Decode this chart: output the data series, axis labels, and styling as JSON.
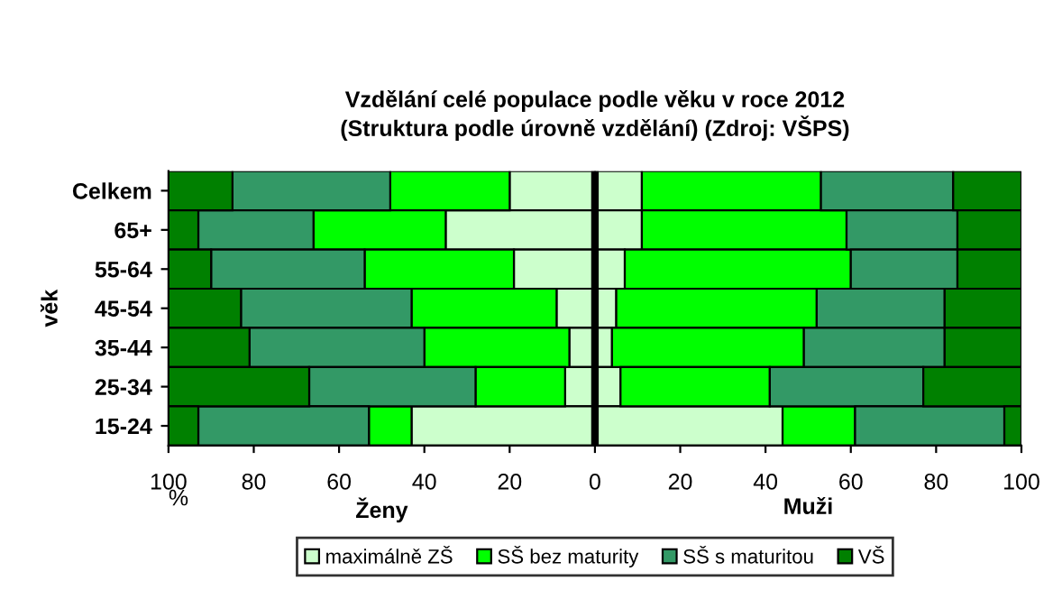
{
  "chart_data": {
    "type": "bar",
    "orientation": "horizontal",
    "stacked": true,
    "title": "Vzdělání celé populace podle věku v roce 2012\n(Struktura podle úrovně vzdělání) (Zdroj: VŠPS)",
    "ylabel": "věk",
    "xlabel": "%",
    "annotations": [
      "Ženy",
      "Muži"
    ],
    "categories": [
      "Celkem",
      "65+",
      "55-64",
      "45-54",
      "35-44",
      "25-34",
      "15-24"
    ],
    "series": [
      {
        "name": "maximálně ZŠ",
        "color": "#ccffcc",
        "values": [
          11,
          11,
          7,
          5,
          4,
          6,
          44
        ]
      },
      {
        "name": "SŠ bez maturity",
        "color": "#00ff00",
        "values": [
          42,
          48,
          53,
          47,
          45,
          35,
          17
        ]
      },
      {
        "name": "SŠ s maturitou",
        "color": "#339966",
        "values": [
          31,
          26,
          25,
          30,
          33,
          36,
          35
        ]
      },
      {
        "name": "VŠ",
        "color": "#008000",
        "values": [
          16,
          15,
          15,
          18,
          18,
          23,
          4
        ]
      },
      {
        "color": "#ccffcc",
        "values": [
          -20,
          -35,
          -19,
          -9,
          -6,
          -7,
          -43
        ]
      },
      {
        "color": "#00ff00",
        "values": [
          -28,
          -31,
          -35,
          -34,
          -34,
          -21,
          -10
        ]
      },
      {
        "color": "#339966",
        "values": [
          -37,
          -27,
          -36,
          -40,
          -41,
          -39,
          -40
        ]
      },
      {
        "color": "#008000",
        "values": [
          -15,
          -7,
          -10,
          -17,
          -19,
          -33,
          -7
        ]
      }
    ],
    "xlim": [
      -100,
      100
    ],
    "xticks": [
      {
        "value": -100,
        "label": "100"
      },
      {
        "value": -80,
        "label": "80"
      },
      {
        "value": -60,
        "label": "60"
      },
      {
        "value": -40,
        "label": "40"
      },
      {
        "value": -20,
        "label": "20"
      },
      0,
      20,
      40,
      60,
      80,
      100
    ],
    "ref_lines": [
      {
        "axis": "x",
        "value": 0,
        "color": "#000000"
      }
    ],
    "legend": "bottom",
    "grid": false
  }
}
